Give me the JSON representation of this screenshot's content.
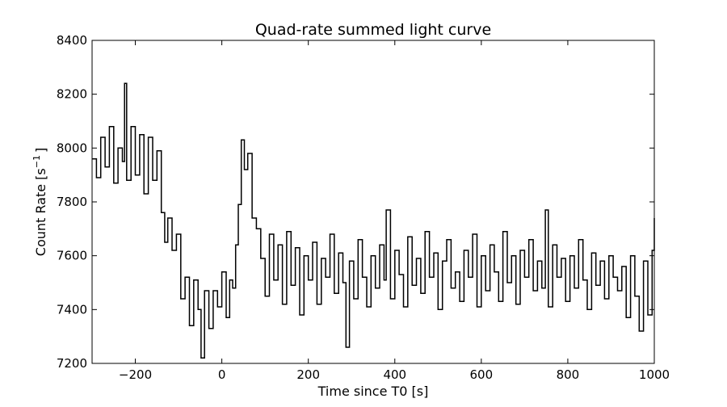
{
  "chart_data": {
    "type": "line",
    "title": "Quad-rate summed light curve",
    "xlabel": "Time since T0 [s]",
    "ylabel": "Count Rate [s",
    "ylabel_sup": "−1",
    "ylabel_close": "]",
    "xlim": [
      -300,
      1000
    ],
    "ylim": [
      7200,
      8400
    ],
    "xticks": [
      -200,
      0,
      200,
      400,
      600,
      800,
      1000
    ],
    "xtick_labels": [
      "−200",
      "0",
      "200",
      "400",
      "600",
      "800",
      "1000"
    ],
    "yticks": [
      7200,
      7400,
      7600,
      7800,
      8000,
      8200,
      8400
    ],
    "ytick_labels": [
      "7200",
      "7400",
      "7600",
      "7800",
      "8000",
      "8200",
      "8400"
    ],
    "grid": false,
    "line_color": "#000000",
    "series": [
      {
        "x": [
          -300,
          -290,
          -280,
          -270,
          -260,
          -250,
          -240,
          -230,
          -225,
          -220,
          -210,
          -200,
          -190,
          -180,
          -170,
          -160,
          -150,
          -140,
          -132,
          -125,
          -115,
          -105,
          -95,
          -85,
          -75,
          -65,
          -55,
          -48,
          -40,
          -30,
          -20,
          -10,
          0,
          10,
          18,
          25,
          32,
          38,
          45,
          52,
          60,
          70,
          80,
          90,
          100,
          110,
          120,
          130,
          140,
          150,
          160,
          170,
          180,
          190,
          200,
          210,
          220,
          230,
          240,
          250,
          260,
          270,
          280,
          287,
          295,
          305,
          315,
          325,
          335,
          345,
          355,
          365,
          375,
          380,
          390,
          400,
          410,
          420,
          430,
          440,
          450,
          460,
          470,
          480,
          490,
          500,
          510,
          520,
          530,
          540,
          550,
          560,
          570,
          580,
          590,
          600,
          610,
          620,
          630,
          640,
          650,
          660,
          670,
          680,
          690,
          700,
          710,
          720,
          730,
          740,
          748,
          755,
          765,
          775,
          785,
          795,
          805,
          815,
          825,
          835,
          845,
          855,
          865,
          875,
          885,
          895,
          905,
          915,
          925,
          935,
          945,
          955,
          965,
          975,
          985,
          995,
          1000
        ],
        "y": [
          7960,
          7890,
          8040,
          7930,
          8080,
          7870,
          8000,
          7950,
          8240,
          7880,
          8080,
          7900,
          8050,
          7830,
          8040,
          7880,
          7990,
          7760,
          7650,
          7740,
          7620,
          7680,
          7440,
          7520,
          7340,
          7510,
          7400,
          7220,
          7470,
          7330,
          7470,
          7410,
          7540,
          7370,
          7510,
          7480,
          7640,
          7790,
          8030,
          7920,
          7980,
          7740,
          7700,
          7590,
          7450,
          7680,
          7510,
          7640,
          7420,
          7690,
          7490,
          7630,
          7380,
          7600,
          7510,
          7650,
          7420,
          7590,
          7520,
          7680,
          7460,
          7610,
          7500,
          7260,
          7580,
          7440,
          7660,
          7520,
          7410,
          7600,
          7480,
          7640,
          7510,
          7770,
          7440,
          7620,
          7530,
          7410,
          7670,
          7490,
          7590,
          7460,
          7690,
          7520,
          7610,
          7400,
          7580,
          7660,
          7480,
          7540,
          7430,
          7620,
          7520,
          7680,
          7410,
          7600,
          7470,
          7640,
          7540,
          7430,
          7690,
          7500,
          7600,
          7420,
          7620,
          7520,
          7660,
          7470,
          7580,
          7480,
          7770,
          7410,
          7640,
          7520,
          7590,
          7430,
          7600,
          7480,
          7660,
          7510,
          7400,
          7610,
          7490,
          7580,
          7440,
          7600,
          7520,
          7470,
          7560,
          7370,
          7600,
          7450,
          7320,
          7580,
          7380,
          7620,
          7740
        ]
      }
    ]
  }
}
